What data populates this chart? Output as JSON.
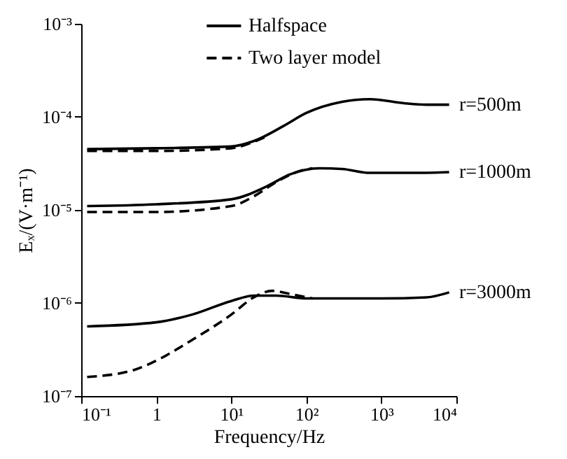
{
  "chart_data": {
    "type": "line",
    "xlabel": "Frequency/Hz",
    "ylabel": "Eₓ/(V·m⁻¹)",
    "log": "xy",
    "grid": false,
    "legend": "top",
    "marker": "none",
    "xlim": [
      0.1,
      10000
    ],
    "xticks": [
      {
        "value": 0.1,
        "label": "10⁻¹"
      },
      1,
      {
        "value": 10,
        "label": "10¹"
      },
      {
        "value": 100,
        "label": "10²"
      },
      {
        "value": 1000,
        "label": "10³"
      },
      {
        "value": 10000,
        "label": "10⁴"
      }
    ],
    "ylim": [
      1e-07,
      0.001
    ],
    "yticks": [
      {
        "value": 1e-07,
        "label": "10⁻⁷"
      },
      {
        "value": 1e-06,
        "label": "10⁻⁶"
      },
      {
        "value": 1e-05,
        "label": "10⁻⁵"
      },
      {
        "value": 0.0001,
        "label": "10⁻⁴"
      },
      {
        "value": 0.001,
        "label": "10⁻³"
      }
    ],
    "series": [
      {
        "name": "Halfspace",
        "color": "#000000",
        "line_style": "solid",
        "x": [
          0.12,
          1,
          10,
          20,
          50,
          100,
          300,
          700,
          2000,
          4000,
          8000
        ],
        "values": [
          4.5e-05,
          4.6e-05,
          4.8e-05,
          5.5e-05,
          8e-05,
          0.00011,
          0.000145,
          0.000155,
          0.00014,
          0.000135,
          0.000135
        ]
      },
      {
        "name": "Two layer model",
        "color": "#000000",
        "line_style": "dashed",
        "x": [
          0.12,
          1,
          10,
          20,
          30
        ],
        "values": [
          4.3e-05,
          4.3e-05,
          4.6e-05,
          5.4e-05,
          6.2e-05
        ]
      },
      {
        "color": "#000000",
        "line_style": "solid",
        "x": [
          0.12,
          1,
          10,
          30,
          60,
          150,
          300,
          700,
          3000,
          8000
        ],
        "values": [
          1.1e-05,
          1.15e-05,
          1.3e-05,
          1.8e-05,
          2.4e-05,
          2.8e-05,
          2.75e-05,
          2.5e-05,
          2.5e-05,
          2.55e-05
        ]
      },
      {
        "color": "#000000",
        "line_style": "dashed",
        "x": [
          0.12,
          1,
          10,
          20,
          40,
          80,
          120
        ],
        "values": [
          9.5e-06,
          9.5e-06,
          1.1e-05,
          1.4e-05,
          2e-05,
          2.6e-05,
          2.8e-05
        ]
      },
      {
        "color": "#000000",
        "line_style": "solid",
        "x": [
          0.12,
          1,
          3,
          10,
          20,
          40,
          100,
          1000,
          4000,
          8000
        ],
        "values": [
          5.6e-07,
          6.2e-07,
          7.5e-07,
          1.05e-06,
          1.2e-06,
          1.2e-06,
          1.12e-06,
          1.12e-06,
          1.15e-06,
          1.3e-06
        ]
      },
      {
        "color": "#000000",
        "line_style": "dashed",
        "x": [
          0.12,
          0.5,
          1,
          3,
          10,
          20,
          35,
          60,
          120
        ],
        "values": [
          1.6e-07,
          1.9e-07,
          2.4e-07,
          4e-07,
          7.5e-07,
          1.15e-06,
          1.35e-06,
          1.25e-06,
          1.12e-06
        ]
      }
    ],
    "annotations": [
      "r=500m",
      "r=1000m",
      "r=3000m"
    ]
  }
}
